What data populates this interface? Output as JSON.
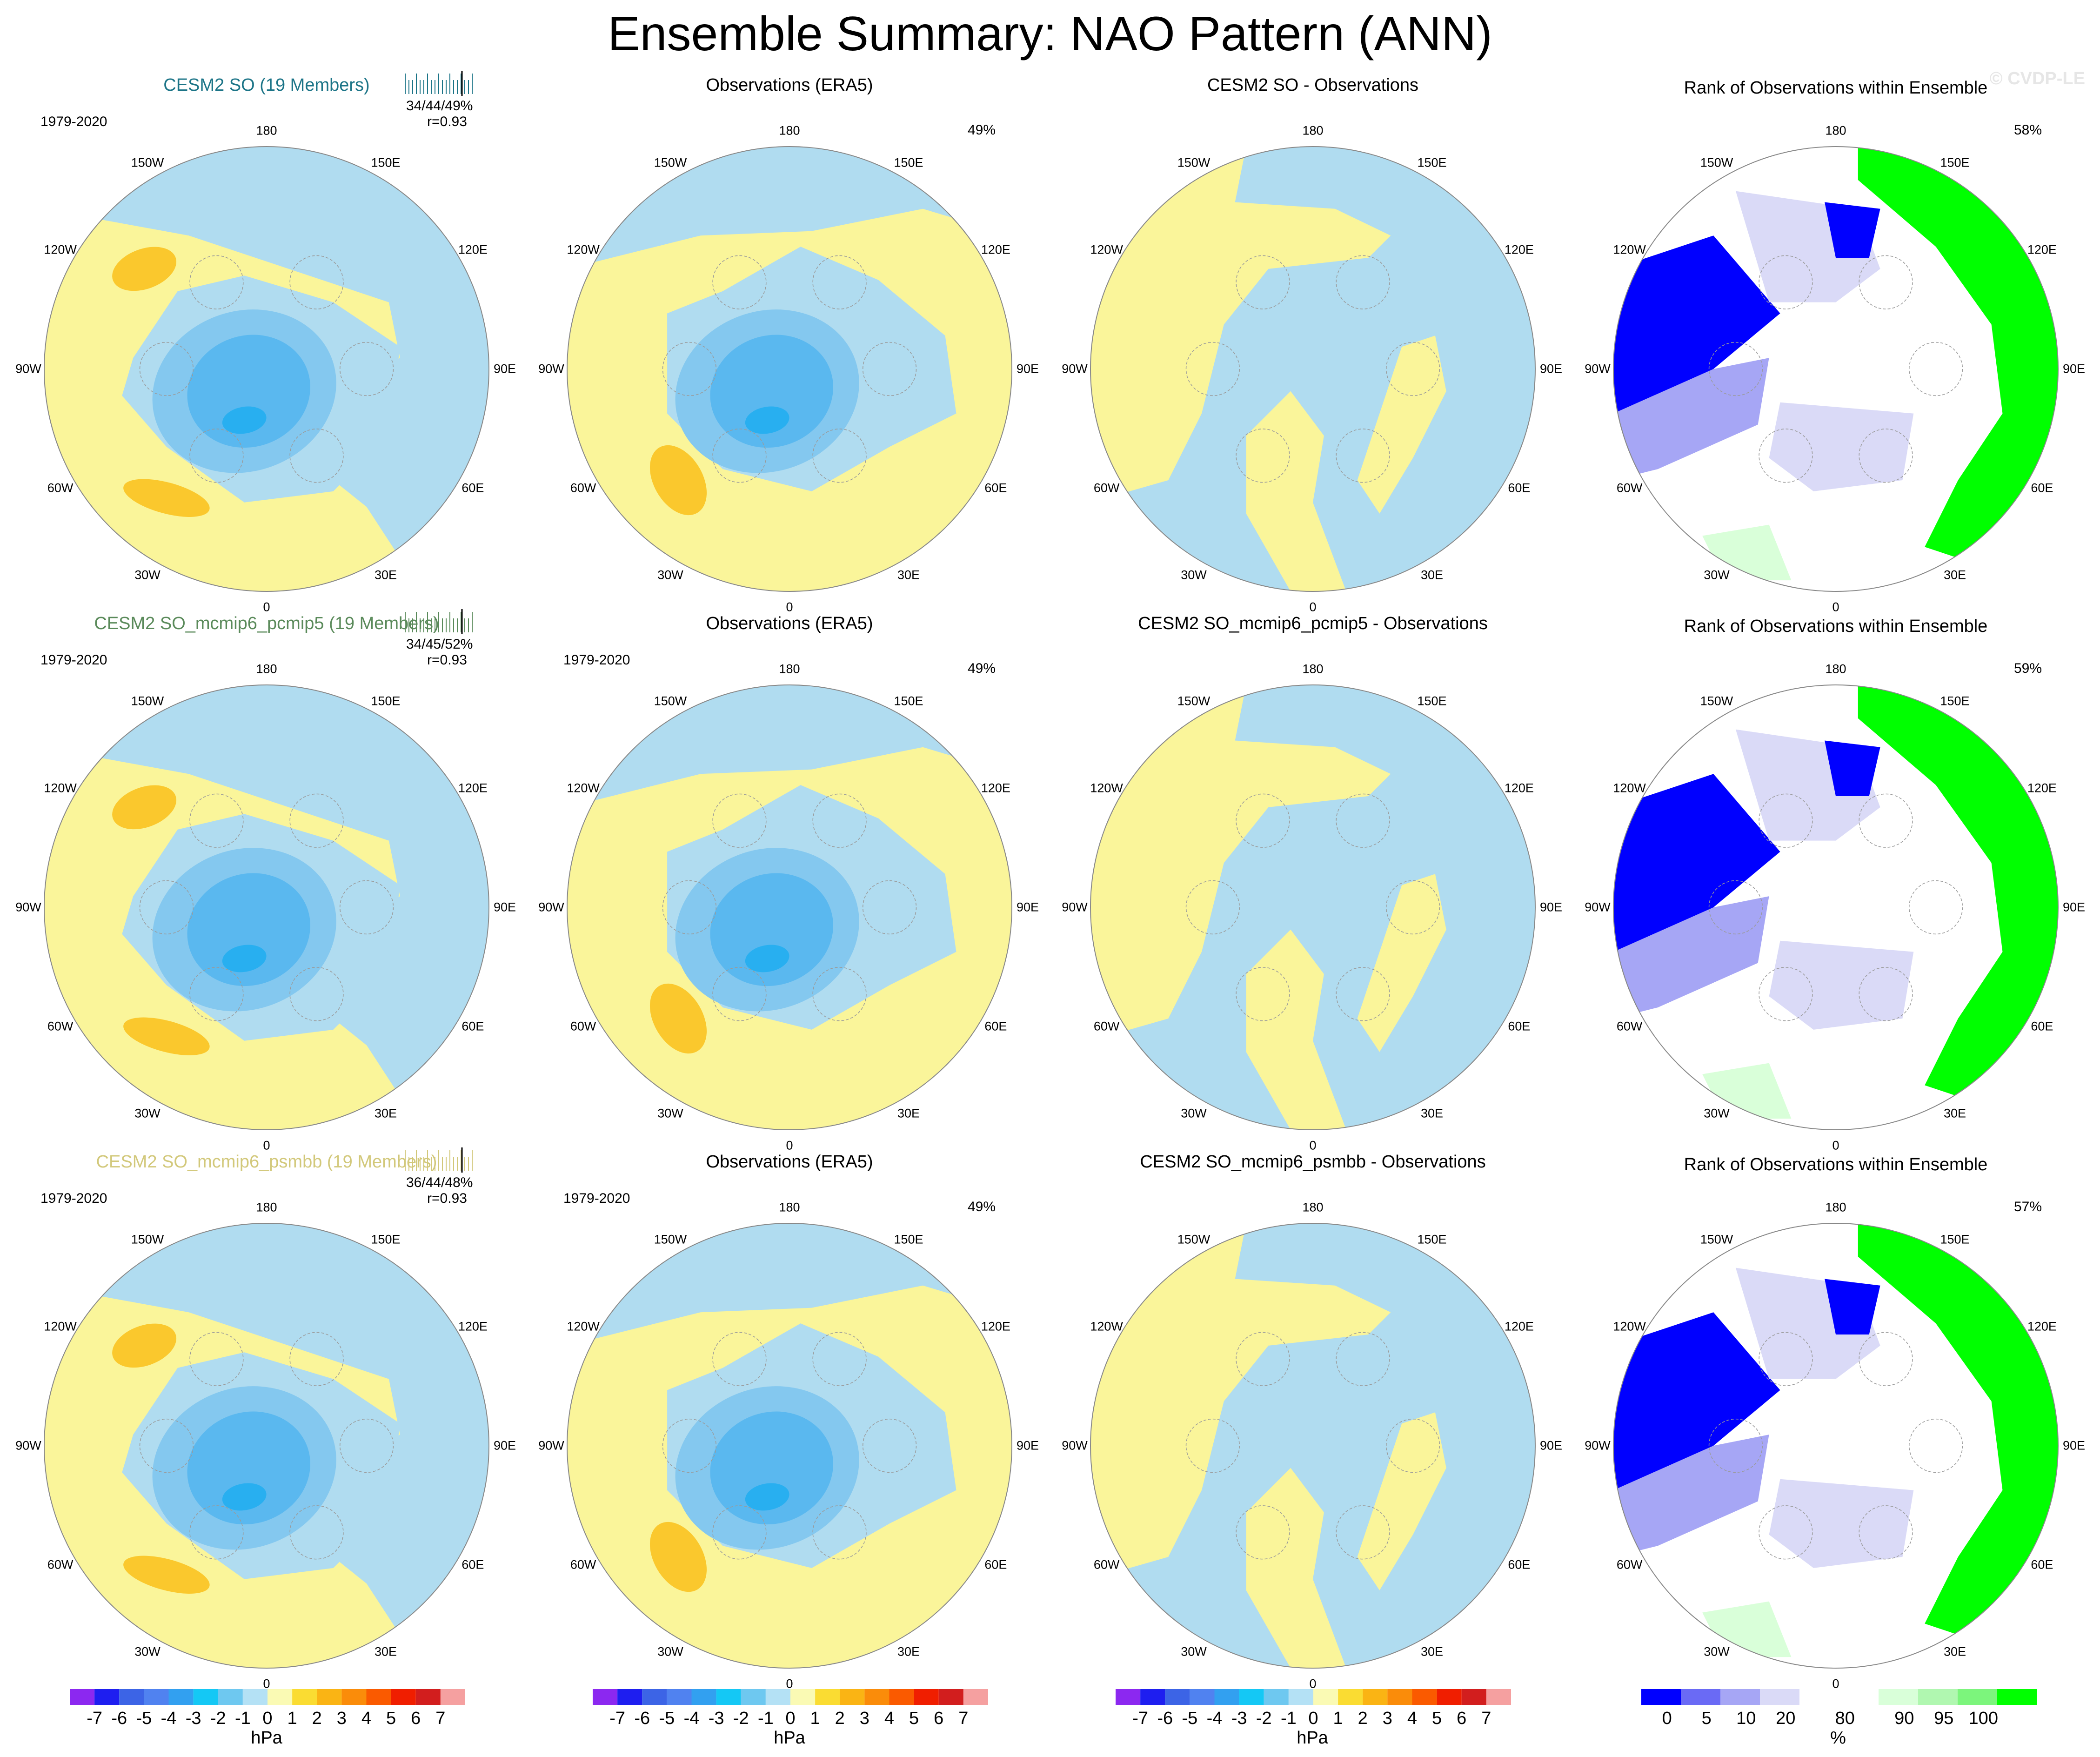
{
  "title": "Ensemble Summary: NAO Pattern (ANN)",
  "watermark": "© CVDP-LE",
  "colors": {
    "yellow": "#faf59a",
    "lightblue": "#b0dcf0",
    "midblue": "#84c8ef",
    "blue": "#5ab8ef",
    "deepblue": "#28aff0",
    "orange": "#fac82d",
    "rank_dark": "#0000ff",
    "rank_mid": "#a6a6f5",
    "rank_light": "#dadaf7",
    "rank_green": "#00ff00",
    "rank_lightgreen": "#d9ffd9"
  },
  "lon_labels": [
    "180",
    "150E",
    "120E",
    "90E",
    "60E",
    "30E",
    "0",
    "30W",
    "60W",
    "90W",
    "120W",
    "150W"
  ],
  "rows": [
    {
      "model_title": "CESM2 SO (19 Members)",
      "model_title_color": "#1b7487",
      "period": "1979-2020",
      "stats": "34/44/49%",
      "corr": "r=0.93",
      "obs_title": "Observations (ERA5)",
      "obs_period": "",
      "obs_pct": "49%",
      "diff_title": "CESM2 SO - Observations",
      "rank_title": "Rank of Observations within Ensemble",
      "rank_pct": "58%"
    },
    {
      "model_title": "CESM2 SO_mcmip6_pcmip5 (19 Members)",
      "model_title_color": "#5a8a5a",
      "period": "1979-2020",
      "stats": "34/45/52%",
      "corr": "r=0.93",
      "obs_title": "Observations (ERA5)",
      "obs_period": "1979-2020",
      "obs_pct": "49%",
      "diff_title": "CESM2 SO_mcmip6_pcmip5 - Observations",
      "rank_title": "Rank of Observations within Ensemble",
      "rank_pct": "59%"
    },
    {
      "model_title": "CESM2 SO_mcmip6_psmbb (19 Members)",
      "model_title_color": "#d2c87a",
      "period": "1979-2020",
      "stats": "36/44/48%",
      "corr": "r=0.93",
      "obs_title": "Observations (ERA5)",
      "obs_period": "1979-2020",
      "obs_pct": "49%",
      "diff_title": "CESM2 SO_mcmip6_psmbb - Observations",
      "rank_title": "Rank of Observations within Ensemble",
      "rank_pct": "57%"
    }
  ],
  "colorbar_hpa": {
    "colors": [
      "#8c28f0",
      "#1e1ef0",
      "#3c64e6",
      "#5082f0",
      "#32a0f0",
      "#14c8f5",
      "#6ec8f0",
      "#b4e1f5",
      "#fafab4",
      "#fadc32",
      "#fab414",
      "#fa8c0a",
      "#fa5a00",
      "#f01e00",
      "#d21e1e",
      "#f5a0a0"
    ],
    "labels": [
      "-7",
      "-6",
      "-5",
      "-4",
      "-3",
      "-2",
      "-1",
      "0",
      "1",
      "2",
      "3",
      "4",
      "5",
      "6",
      "7"
    ],
    "unit": "hPa"
  },
  "colorbar_rank": {
    "colors": [
      "#0000ff",
      "#6a6af5",
      "#a6a6f5",
      "#dadaf7",
      "#ffffff",
      "#ffffff",
      "#d9ffd9",
      "#b0f7b0",
      "#7cf57c",
      "#00ff00"
    ],
    "labels": [
      "0",
      "5",
      "10",
      "20",
      "80",
      "90",
      "95",
      "100"
    ],
    "unit": "%"
  }
}
